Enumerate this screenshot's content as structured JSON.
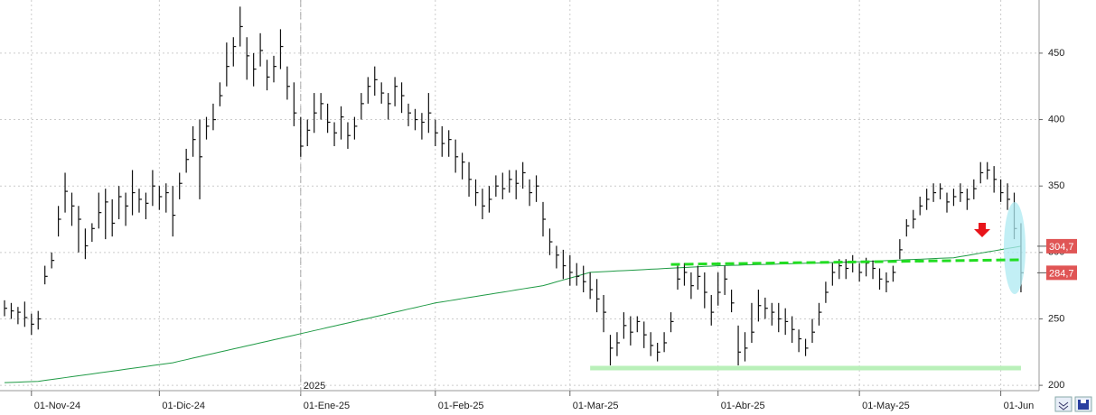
{
  "chart_data": {
    "type": "ohlc",
    "categories": [
      null,
      null,
      null,
      null,
      "01-Nov-24",
      null,
      null,
      null,
      null,
      null,
      null,
      null,
      null,
      null,
      null,
      null,
      null,
      null,
      null,
      null,
      null,
      null,
      null,
      "01-Dic-24",
      null,
      null,
      null,
      null,
      null,
      null,
      null,
      null,
      null,
      null,
      null,
      null,
      null,
      null,
      null,
      null,
      null,
      null,
      null,
      null,
      "01-Ene-25",
      null,
      null,
      null,
      null,
      null,
      null,
      null,
      null,
      null,
      null,
      null,
      null,
      null,
      null,
      null,
      null,
      null,
      null,
      null,
      "01-Feb-25",
      null,
      null,
      null,
      null,
      null,
      null,
      null,
      null,
      null,
      null,
      null,
      null,
      null,
      null,
      null,
      null,
      null,
      null,
      null,
      "01-Mar-25",
      null,
      null,
      null,
      null,
      null,
      null,
      null,
      null,
      null,
      null,
      null,
      null,
      null,
      null,
      null,
      null,
      null,
      null,
      null,
      null,
      null,
      "01-Abr-25",
      null,
      null,
      null,
      null,
      null,
      null,
      null,
      null,
      null,
      null,
      null,
      null,
      null,
      null,
      null,
      null,
      null,
      null,
      null,
      null,
      "01-May-25",
      null,
      null,
      null,
      null,
      null,
      null,
      null,
      null,
      null,
      null,
      null,
      null,
      null,
      null,
      null,
      null,
      null,
      null,
      null,
      null,
      "01-Jun",
      null,
      null,
      null
    ],
    "high": [
      264,
      262,
      259,
      263,
      254,
      256,
      290,
      300,
      335,
      360,
      345,
      335,
      318,
      322,
      345,
      348,
      340,
      350,
      345,
      362,
      348,
      345,
      362,
      350,
      352,
      350,
      360,
      378,
      395,
      400,
      402,
      412,
      428,
      458,
      462,
      485,
      462,
      450,
      465,
      445,
      448,
      468,
      440,
      428,
      402,
      400,
      420,
      420,
      412,
      398,
      410,
      398,
      402,
      420,
      432,
      440,
      428,
      420,
      432,
      428,
      412,
      408,
      405,
      420,
      400,
      395,
      392,
      385,
      375,
      368,
      355,
      348,
      350,
      358,
      360,
      362,
      362,
      368,
      355,
      358,
      338,
      318,
      305,
      302,
      298,
      292,
      290,
      285,
      280,
      268,
      238,
      240,
      255,
      252,
      252,
      248,
      240,
      232,
      240,
      255,
      290,
      292,
      285,
      290,
      285,
      268,
      285,
      290,
      272,
      245,
      240,
      262,
      272,
      266,
      262,
      262,
      258,
      252,
      242,
      235,
      250,
      262,
      278,
      292,
      295,
      295,
      298,
      292,
      296,
      294,
      288,
      285,
      290,
      310,
      325,
      332,
      342,
      348,
      352,
      352,
      345,
      348,
      352,
      348,
      355,
      368,
      368,
      365,
      355,
      352,
      345,
      322
    ],
    "low": [
      252,
      250,
      246,
      244,
      238,
      242,
      276,
      288,
      312,
      330,
      320,
      300,
      295,
      308,
      318,
      310,
      312,
      325,
      320,
      328,
      330,
      325,
      335,
      332,
      330,
      312,
      340,
      360,
      372,
      340,
      385,
      392,
      410,
      425,
      440,
      455,
      430,
      425,
      440,
      422,
      428,
      438,
      415,
      395,
      372,
      380,
      390,
      400,
      390,
      380,
      385,
      378,
      385,
      400,
      412,
      418,
      412,
      400,
      410,
      405,
      395,
      392,
      385,
      390,
      380,
      372,
      372,
      360,
      355,
      342,
      335,
      325,
      330,
      342,
      340,
      345,
      340,
      348,
      335,
      338,
      312,
      298,
      288,
      280,
      275,
      275,
      270,
      265,
      255,
      240,
      215,
      222,
      235,
      230,
      240,
      228,
      222,
      218,
      225,
      240,
      272,
      275,
      265,
      272,
      258,
      245,
      260,
      268,
      255,
      215,
      218,
      232,
      248,
      250,
      245,
      240,
      238,
      232,
      225,
      222,
      232,
      245,
      262,
      275,
      280,
      280,
      285,
      278,
      282,
      280,
      272,
      270,
      278,
      295,
      312,
      318,
      328,
      332,
      338,
      340,
      330,
      335,
      338,
      332,
      340,
      352,
      355,
      345,
      338,
      332,
      310,
      270
    ],
    "close": [
      258,
      256,
      255,
      251,
      246,
      250,
      282,
      294,
      325,
      346,
      335,
      325,
      305,
      318,
      330,
      338,
      322,
      342,
      335,
      345,
      340,
      337,
      350,
      342,
      345,
      328,
      352,
      370,
      385,
      372,
      395,
      400,
      418,
      440,
      455,
      470,
      448,
      438,
      452,
      432,
      440,
      455,
      425,
      405,
      380,
      392,
      405,
      412,
      398,
      390,
      402,
      388,
      395,
      412,
      425,
      430,
      420,
      412,
      425,
      418,
      405,
      400,
      398,
      405,
      390,
      382,
      385,
      372,
      368,
      355,
      345,
      335,
      340,
      350,
      348,
      355,
      352,
      360,
      345,
      350,
      325,
      308,
      298,
      290,
      285,
      282,
      278,
      272,
      265,
      255,
      228,
      232,
      245,
      240,
      248,
      238,
      230,
      225,
      232,
      248,
      280,
      285,
      275,
      282,
      270,
      255,
      270,
      280,
      262,
      225,
      228,
      240,
      260,
      258,
      255,
      250,
      248,
      242,
      235,
      228,
      240,
      255,
      270,
      285,
      290,
      288,
      293,
      285,
      292,
      288,
      280,
      278,
      285,
      302,
      320,
      325,
      335,
      340,
      345,
      348,
      338,
      342,
      345,
      340,
      348,
      360,
      362,
      355,
      345,
      340,
      318,
      284.7
    ],
    "bar_color": "#111111",
    "moving_average": {
      "color": "#1f9a45",
      "values": [
        202,
        202.2,
        202.4,
        202.6,
        202.8,
        203,
        203.7,
        204.4,
        205.1,
        205.8,
        206.5,
        207.2,
        207.9,
        208.6,
        209.3,
        210,
        210.7,
        211.4,
        212.1,
        212.8,
        213.5,
        214.2,
        214.9,
        215.6,
        216.3,
        217,
        218.2,
        219.3,
        220.5,
        221.6,
        222.8,
        223.9,
        225.1,
        226.2,
        227.4,
        228.5,
        229.7,
        230.8,
        232,
        233.1,
        234.3,
        235.4,
        236.6,
        237.7,
        238.9,
        240,
        241.2,
        242.3,
        243.5,
        244.6,
        245.8,
        246.9,
        248.1,
        249.3,
        250.4,
        251.6,
        252.7,
        253.9,
        255.1,
        256.2,
        257.4,
        258.5,
        259.7,
        260.8,
        262,
        262.8,
        263.6,
        264.4,
        265.3,
        266.1,
        266.9,
        267.7,
        268.5,
        269.3,
        270.1,
        270.9,
        271.8,
        272.6,
        273.4,
        274.2,
        275,
        276.4,
        277.9,
        279.3,
        280.7,
        282.1,
        283.6,
        285,
        285.3,
        285.5,
        285.8,
        286.1,
        286.3,
        286.6,
        286.8,
        287.1,
        287.4,
        287.6,
        287.9,
        288.2,
        288.4,
        288.7,
        288.9,
        289.2,
        289.5,
        289.7,
        290,
        290.1,
        290.3,
        290.4,
        290.6,
        290.7,
        290.9,
        291,
        291.1,
        291.3,
        291.4,
        291.6,
        291.7,
        291.9,
        292,
        292.1,
        292.3,
        292.4,
        292.6,
        292.7,
        292.9,
        293,
        293.2,
        293.4,
        293.6,
        293.9,
        294.1,
        294.3,
        294.5,
        294.7,
        294.9,
        295.1,
        295.4,
        295.6,
        295.8,
        296,
        296.9,
        297.7,
        298.6,
        299.5,
        300.4,
        301.2,
        302.1,
        303,
        303.8,
        304.7
      ]
    },
    "lines": [
      {
        "x": [
          87,
          151
        ],
        "values": [
          213,
          213
        ],
        "color": "#b9f0b9",
        "width": 5,
        "dashed": false
      },
      {
        "x": [
          99,
          151
        ],
        "values": [
          291,
          294.5
        ],
        "color": "#22dd22",
        "width": 3,
        "dashed": true
      }
    ],
    "last_values": [
      {
        "value": 304.7,
        "label": "304,7"
      },
      {
        "value": 284.7,
        "label": "284,7"
      }
    ],
    "last_value_color": "#e05555",
    "year_marker": {
      "label": "2025",
      "category": "01-Ene-25"
    },
    "ylim": [
      196,
      490
    ],
    "yticks": [
      200,
      250,
      300,
      350,
      400,
      450
    ],
    "grid": true
  }
}
